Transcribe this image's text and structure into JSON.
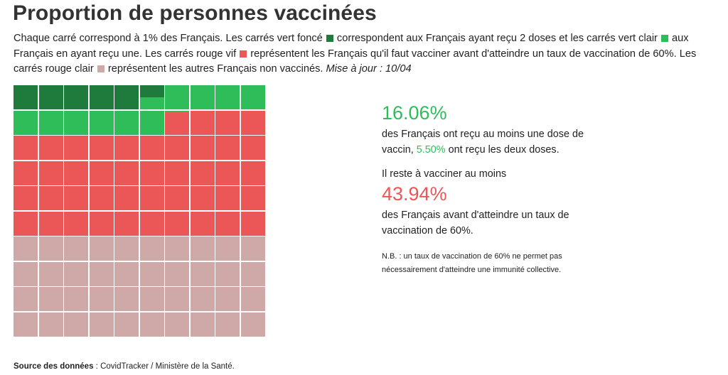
{
  "title": "Proportion de personnes vaccinées",
  "description": {
    "part1": "Chaque carré correspond à 1% des Français. Les carrés vert foncé",
    "part2": "correspondent aux Français ayant reçu 2 doses et les carrés vert clair",
    "part3": "aux Français en ayant reçu une. Les carrés rouge vif",
    "part4": "représentent les Français qu'il faut vacciner avant d'atteindre un taux de vaccination de 60%. Les carrés rouge clair",
    "part5": "représentent les autres Français non vaccinés.",
    "update": "Mise à jour : 10/04"
  },
  "colors": {
    "dark_green": "#1e7b3c",
    "light_green": "#2ebd59",
    "bright_red": "#eb5757",
    "light_red": "#cfa8a8",
    "accent_green_text": "#2ebd59",
    "accent_red_text": "#eb5757"
  },
  "stats": {
    "vaccinated_pct": "16.06%",
    "vaccinated_text_a": "des Français ont reçu au moins une dose de vaccin,",
    "two_doses_pct": "5.50%",
    "vaccinated_text_b": "ont reçu les deux doses.",
    "remain_label": "Il reste à vacciner au moins",
    "remain_pct": "43.94%",
    "remain_text": "des Français avant d'atteindre un taux de vaccination de 60%.",
    "note": "N.B. : un taux de vaccination de 60% ne permet pas nécessairement d'atteindre une immunité collective."
  },
  "source": {
    "label": "Source des données",
    "text": " : CovidTracker / Ministère de la Santé."
  },
  "chart_data": {
    "type": "waffle",
    "grid": [
      10,
      10
    ],
    "unit": "1% per square",
    "fill_order": "row-major, top-left",
    "segments": [
      {
        "key": "two_doses",
        "value": 5.5
      },
      {
        "key": "one_dose",
        "value": 10.56
      },
      {
        "key": "to_vaccinate_before_60",
        "value": 43.94
      },
      {
        "key": "other_unvaccinated",
        "value": 40.0
      }
    ]
  }
}
